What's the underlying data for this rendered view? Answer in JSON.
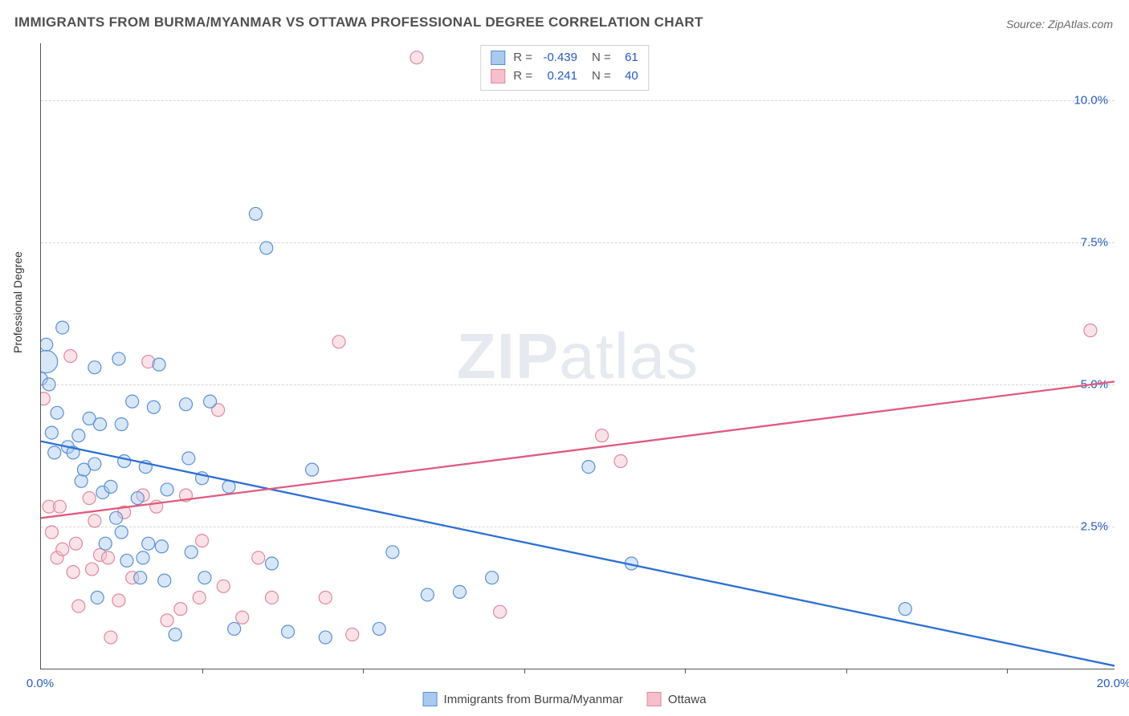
{
  "title": "IMMIGRANTS FROM BURMA/MYANMAR VS OTTAWA PROFESSIONAL DEGREE CORRELATION CHART",
  "source_label": "Source: ",
  "source_name": "ZipAtlas.com",
  "watermark_a": "ZIP",
  "watermark_b": "atlas",
  "y_axis_label": "Professional Degree",
  "chart": {
    "type": "scatter",
    "background_color": "#ffffff",
    "grid_color": "#d7d7d7",
    "axis_color": "#555555",
    "xlim": [
      0,
      20
    ],
    "ylim": [
      0,
      11
    ],
    "x_ticks": [
      0,
      20
    ],
    "x_tick_labels": [
      "0.0%",
      "20.0%"
    ],
    "x_minor_ticks": [
      3.0,
      6.0,
      9.0,
      12.0,
      15.0,
      18.0
    ],
    "y_ticks": [
      2.5,
      5.0,
      7.5,
      10.0
    ],
    "y_tick_labels": [
      "2.5%",
      "5.0%",
      "7.5%",
      "10.0%"
    ],
    "marker_radius": 8,
    "marker_opacity": 0.45,
    "line_width": 2.3
  },
  "stats": [
    {
      "r_label": "R =",
      "r": "-0.439",
      "n_label": "N =",
      "n": "61"
    },
    {
      "r_label": "R =",
      "r": "0.241",
      "n_label": "N =",
      "n": "40"
    }
  ],
  "series": [
    {
      "name": "Immigrants from Burma/Myanmar",
      "fill": "#a9c9ef",
      "stroke": "#5a8fd6",
      "line_color": "#2d6fd4",
      "trend": {
        "x1": 0,
        "y1": 4.0,
        "x2": 20,
        "y2": 0.05
      },
      "points": [
        [
          0.0,
          5.1
        ],
        [
          0.1,
          5.7
        ],
        [
          0.1,
          5.4,
          14
        ],
        [
          0.15,
          5.0
        ],
        [
          0.2,
          4.15
        ],
        [
          0.25,
          3.8
        ],
        [
          0.3,
          4.5
        ],
        [
          0.4,
          6.0
        ],
        [
          0.5,
          3.9
        ],
        [
          0.6,
          3.8
        ],
        [
          0.7,
          4.1
        ],
        [
          0.75,
          3.3
        ],
        [
          0.8,
          3.5
        ],
        [
          0.9,
          4.4
        ],
        [
          1.0,
          5.3
        ],
        [
          1.0,
          3.6
        ],
        [
          1.05,
          1.25
        ],
        [
          1.1,
          4.3
        ],
        [
          1.15,
          3.1
        ],
        [
          1.2,
          2.2
        ],
        [
          1.3,
          3.2
        ],
        [
          1.4,
          2.65
        ],
        [
          1.45,
          5.45
        ],
        [
          1.5,
          4.3
        ],
        [
          1.5,
          2.4
        ],
        [
          1.55,
          3.65
        ],
        [
          1.6,
          1.9
        ],
        [
          1.7,
          4.7
        ],
        [
          1.8,
          3.0
        ],
        [
          1.85,
          1.6
        ],
        [
          1.9,
          1.95
        ],
        [
          2.0,
          2.2
        ],
        [
          2.1,
          4.6
        ],
        [
          2.2,
          5.35
        ],
        [
          2.25,
          2.15
        ],
        [
          2.3,
          1.55
        ],
        [
          2.35,
          3.15
        ],
        [
          2.5,
          0.6
        ],
        [
          2.7,
          4.65
        ],
        [
          2.75,
          3.7
        ],
        [
          2.8,
          2.05
        ],
        [
          3.0,
          3.35
        ],
        [
          3.05,
          1.6
        ],
        [
          3.15,
          4.7
        ],
        [
          3.5,
          3.2
        ],
        [
          3.6,
          0.7
        ],
        [
          4.0,
          8.0
        ],
        [
          4.2,
          7.4
        ],
        [
          4.3,
          1.85
        ],
        [
          4.6,
          0.65
        ],
        [
          5.05,
          3.5
        ],
        [
          5.3,
          0.55
        ],
        [
          6.3,
          0.7
        ],
        [
          6.55,
          2.05
        ],
        [
          7.2,
          1.3
        ],
        [
          7.8,
          1.35
        ],
        [
          10.2,
          3.55
        ],
        [
          11.0,
          1.85
        ],
        [
          16.1,
          1.05
        ],
        [
          8.4,
          1.6
        ],
        [
          1.95,
          3.55
        ]
      ]
    },
    {
      "name": "Ottawa",
      "fill": "#f5c0cb",
      "stroke": "#e088a0",
      "line_color": "#e05a7f",
      "trend": {
        "x1": 0,
        "y1": 2.65,
        "x2": 20,
        "y2": 5.05
      },
      "points": [
        [
          0.05,
          4.75
        ],
        [
          0.15,
          2.85
        ],
        [
          0.2,
          2.4
        ],
        [
          0.3,
          1.95
        ],
        [
          0.35,
          2.85
        ],
        [
          0.4,
          2.1
        ],
        [
          0.55,
          5.5
        ],
        [
          0.6,
          1.7
        ],
        [
          0.65,
          2.2
        ],
        [
          0.7,
          1.1
        ],
        [
          0.9,
          3.0
        ],
        [
          0.95,
          1.75
        ],
        [
          1.0,
          2.6
        ],
        [
          1.1,
          2.0
        ],
        [
          1.25,
          1.95
        ],
        [
          1.3,
          0.55
        ],
        [
          1.45,
          1.2
        ],
        [
          1.55,
          2.75
        ],
        [
          1.7,
          1.6
        ],
        [
          1.9,
          3.05
        ],
        [
          2.0,
          5.4
        ],
        [
          2.15,
          2.85
        ],
        [
          2.35,
          0.85
        ],
        [
          2.6,
          1.05
        ],
        [
          2.7,
          3.05
        ],
        [
          2.95,
          1.25
        ],
        [
          3.0,
          2.25
        ],
        [
          3.3,
          4.55
        ],
        [
          3.4,
          1.45
        ],
        [
          3.75,
          0.9
        ],
        [
          4.05,
          1.95
        ],
        [
          4.3,
          1.25
        ],
        [
          5.3,
          1.25
        ],
        [
          5.55,
          5.75
        ],
        [
          5.8,
          0.6
        ],
        [
          7.0,
          10.75
        ],
        [
          8.55,
          1.0
        ],
        [
          10.45,
          4.1
        ],
        [
          10.8,
          3.65
        ],
        [
          19.55,
          5.95
        ]
      ]
    }
  ],
  "bottom_legend": [
    {
      "label": "Immigrants from Burma/Myanmar"
    },
    {
      "label": "Ottawa"
    }
  ]
}
